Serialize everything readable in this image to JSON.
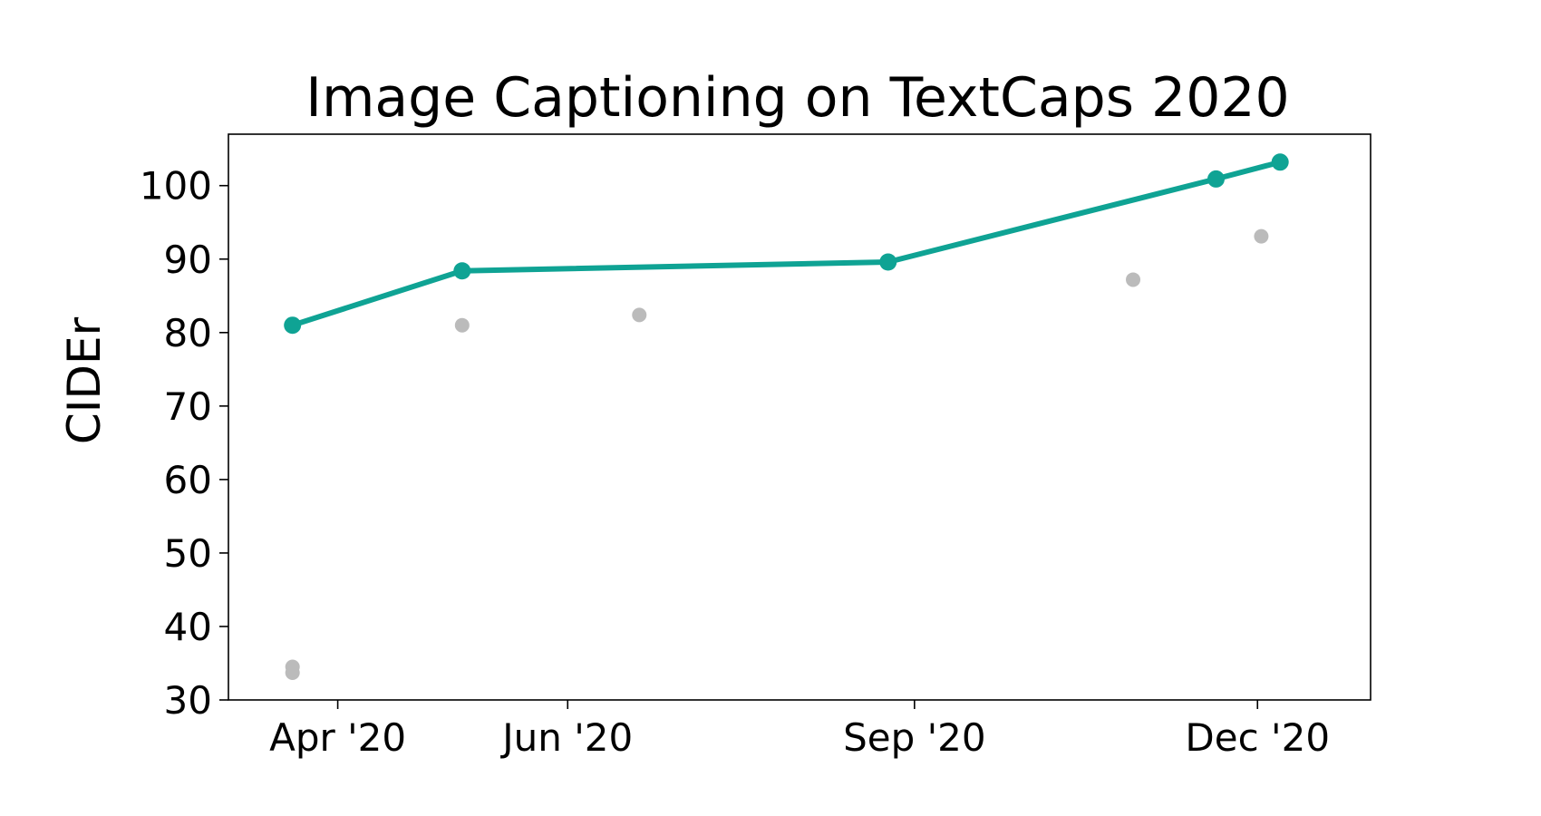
{
  "chart_data": {
    "type": "line",
    "title": "Image Captioning on TextCaps 2020",
    "xlabel": "",
    "ylabel": "CIDEr",
    "ylim": [
      30,
      107
    ],
    "xlim": [
      "2020-03-03",
      "2020-12-31"
    ],
    "grid": false,
    "x_ticks": [
      {
        "date": "2020-04-01",
        "label": "Apr '20"
      },
      {
        "date": "2020-06-01",
        "label": "Jun '20"
      },
      {
        "date": "2020-09-01",
        "label": "Sep '20"
      },
      {
        "date": "2020-12-01",
        "label": "Dec '20"
      }
    ],
    "y_ticks": [
      30,
      40,
      50,
      60,
      70,
      80,
      90,
      100
    ],
    "series": [
      {
        "role": "state-of-the-art",
        "color": "#0fa394",
        "points": [
          {
            "x": "2020-03-20",
            "y": 81.0
          },
          {
            "x": "2020-05-04",
            "y": 88.4
          },
          {
            "x": "2020-08-25",
            "y": 89.6
          },
          {
            "x": "2020-11-20",
            "y": 100.9
          },
          {
            "x": "2020-12-07",
            "y": 103.2
          }
        ]
      },
      {
        "role": "other-submissions",
        "color": "#bbbbbb",
        "points": [
          {
            "x": "2020-03-20",
            "y": 34.5
          },
          {
            "x": "2020-03-20",
            "y": 33.7
          },
          {
            "x": "2020-05-04",
            "y": 81.0
          },
          {
            "x": "2020-06-20",
            "y": 82.4
          },
          {
            "x": "2020-10-29",
            "y": 87.2
          },
          {
            "x": "2020-12-02",
            "y": 93.1
          }
        ]
      }
    ]
  }
}
